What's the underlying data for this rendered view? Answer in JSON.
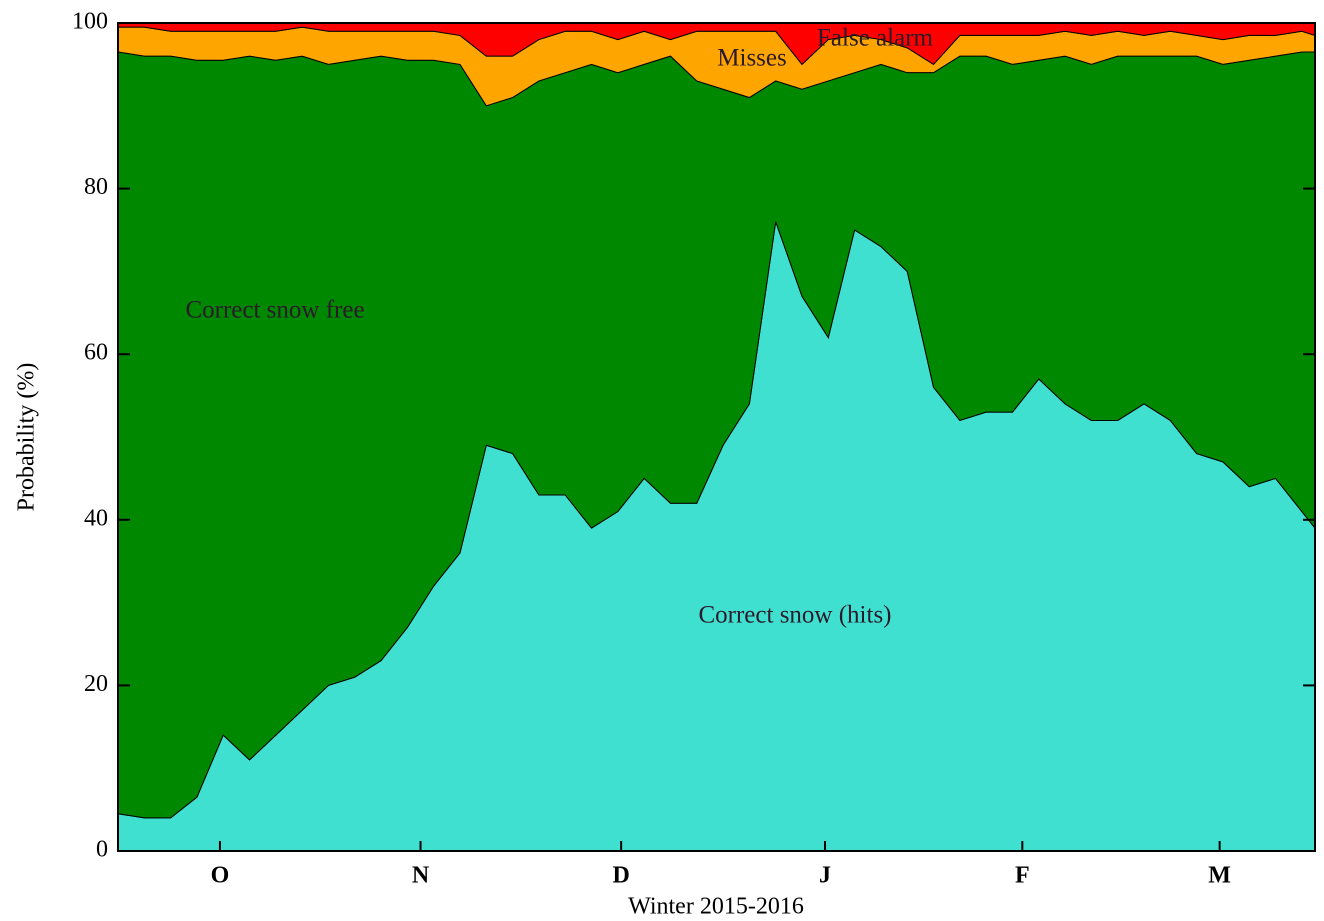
{
  "chart_data": {
    "type": "stacked-area",
    "xlabel": "Winter 2015-2016",
    "ylabel": "Probability (%)",
    "x": [
      0,
      4,
      8,
      12,
      16,
      20,
      24,
      28,
      32,
      36,
      40,
      44,
      48,
      52,
      56,
      60,
      64,
      68,
      72,
      76,
      80,
      84,
      88,
      92,
      96,
      100,
      104,
      108,
      112,
      116,
      120,
      124,
      128,
      132,
      136,
      140,
      144,
      148,
      152,
      156,
      160,
      164,
      168,
      172,
      176,
      180,
      182
    ],
    "xlim": [
      0,
      182
    ],
    "xticks": [
      {
        "value": 15.5,
        "label": "O"
      },
      {
        "value": 46,
        "label": "N"
      },
      {
        "value": 76.5,
        "label": "D"
      },
      {
        "value": 107.5,
        "label": "J"
      },
      {
        "value": 137.5,
        "label": "F"
      },
      {
        "value": 167.5,
        "label": "M"
      }
    ],
    "ylim": [
      0,
      100
    ],
    "yticks": [
      0,
      20,
      40,
      60,
      80,
      100
    ],
    "series": [
      {
        "name": "Correct snow (hits)",
        "color": "#40e0d0",
        "values": [
          4.5,
          4,
          4,
          6.5,
          14,
          11,
          14,
          17,
          20,
          21,
          23,
          27,
          32,
          36,
          49,
          48,
          43,
          43,
          39,
          41,
          45,
          42,
          42,
          49,
          54,
          76,
          67,
          62,
          75,
          73,
          70,
          56,
          52,
          53,
          53,
          57,
          54,
          52,
          52,
          54,
          52,
          48,
          47,
          44,
          45,
          41,
          39
        ]
      },
      {
        "name": "Correct snow free",
        "color": "#008800",
        "values": [
          92,
          92,
          92,
          89,
          81.5,
          85,
          81.5,
          79,
          75,
          74.5,
          73,
          68.5,
          63.5,
          59,
          41,
          43,
          50,
          51,
          56,
          53,
          50,
          54,
          51,
          43,
          37,
          17,
          25,
          31,
          19,
          22,
          24,
          38,
          44,
          43,
          42,
          38.5,
          42,
          43,
          44,
          42,
          44,
          48,
          48,
          51.5,
          51,
          55.5,
          57.5
        ]
      },
      {
        "name": "Misses",
        "color": "#ffa500",
        "values": [
          3,
          3.5,
          3,
          3.5,
          3.5,
          3,
          3.5,
          3.5,
          4,
          3.5,
          3,
          3.5,
          3.5,
          3.5,
          6,
          5,
          5,
          5,
          4,
          4,
          4,
          2,
          6,
          7,
          8,
          6,
          3,
          5,
          4.5,
          3,
          3,
          1,
          2.5,
          2.5,
          3.5,
          3,
          3,
          3.5,
          3,
          2.5,
          3,
          2.5,
          3,
          3,
          2.5,
          2.5,
          2
        ]
      },
      {
        "name": "False alarm",
        "color": "#ff0000",
        "values": [
          0.5,
          0.5,
          1,
          1,
          1,
          1,
          1,
          0.5,
          1,
          1,
          1,
          1,
          1,
          1.5,
          4,
          4,
          2,
          1,
          1,
          2,
          1,
          2,
          1,
          1,
          1,
          1,
          5,
          2,
          1.5,
          2,
          3,
          5,
          1.5,
          1.5,
          1.5,
          1.5,
          1,
          1.5,
          1,
          1.5,
          1,
          1.5,
          2,
          1.5,
          1.5,
          1,
          1.5
        ]
      }
    ]
  }
}
